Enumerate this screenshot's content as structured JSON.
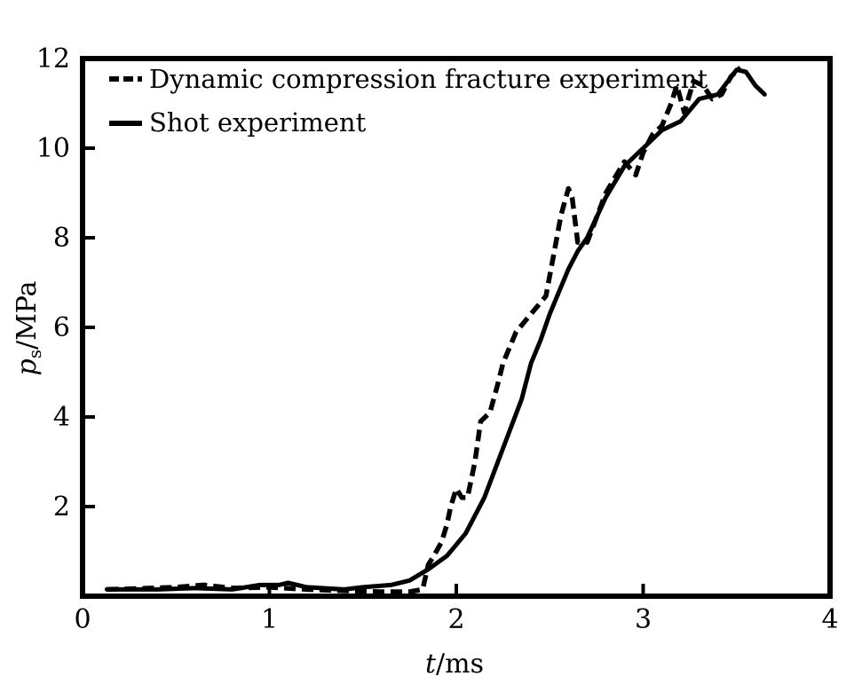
{
  "chart_data": {
    "type": "line",
    "title": "",
    "xlabel_italic": "t",
    "xlabel_rest": "/ms",
    "ylabel_italic": "p",
    "ylabel_sub": "s",
    "ylabel_rest": "/MPa",
    "xlim": [
      0,
      4
    ],
    "ylim": [
      0,
      12
    ],
    "x_ticks": [
      0,
      1,
      2,
      3,
      4
    ],
    "x_tick_labels": [
      "0",
      "1",
      "2",
      "3",
      "4"
    ],
    "y_ticks": [
      2,
      4,
      6,
      8,
      10,
      12
    ],
    "y_tick_labels": [
      "2",
      "4",
      "6",
      "8",
      "10",
      "12"
    ],
    "legend_position": "top-left",
    "grid": false,
    "series": [
      {
        "name": "Dynamic compression fracture experiment",
        "style": "dashed",
        "color": "#000000",
        "points": [
          [
            0.13,
            0.15
          ],
          [
            0.3,
            0.17
          ],
          [
            0.5,
            0.2
          ],
          [
            0.65,
            0.25
          ],
          [
            0.8,
            0.18
          ],
          [
            1.0,
            0.2
          ],
          [
            1.2,
            0.15
          ],
          [
            1.4,
            0.12
          ],
          [
            1.6,
            0.1
          ],
          [
            1.75,
            0.1
          ],
          [
            1.82,
            0.15
          ],
          [
            1.85,
            0.7
          ],
          [
            1.88,
            0.9
          ],
          [
            1.92,
            1.2
          ],
          [
            1.95,
            1.6
          ],
          [
            1.97,
            2.0
          ],
          [
            2.0,
            2.4
          ],
          [
            2.03,
            2.2
          ],
          [
            2.06,
            2.2
          ],
          [
            2.1,
            3.0
          ],
          [
            2.13,
            3.9
          ],
          [
            2.18,
            4.1
          ],
          [
            2.22,
            4.7
          ],
          [
            2.25,
            5.2
          ],
          [
            2.28,
            5.5
          ],
          [
            2.32,
            5.9
          ],
          [
            2.36,
            6.1
          ],
          [
            2.4,
            6.3
          ],
          [
            2.44,
            6.5
          ],
          [
            2.48,
            6.7
          ],
          [
            2.52,
            7.6
          ],
          [
            2.56,
            8.5
          ],
          [
            2.6,
            9.1
          ],
          [
            2.62,
            8.9
          ],
          [
            2.65,
            7.9
          ],
          [
            2.7,
            7.9
          ],
          [
            2.8,
            9.0
          ],
          [
            2.9,
            9.7
          ],
          [
            2.96,
            9.4
          ],
          [
            3.0,
            9.9
          ],
          [
            3.05,
            10.3
          ],
          [
            3.1,
            10.5
          ],
          [
            3.15,
            11.0
          ],
          [
            3.18,
            11.4
          ],
          [
            3.22,
            10.8
          ],
          [
            3.27,
            11.5
          ],
          [
            3.32,
            11.4
          ],
          [
            3.37,
            11.1
          ],
          [
            3.42,
            11.2
          ],
          [
            3.47,
            11.6
          ],
          [
            3.52,
            11.8
          ]
        ]
      },
      {
        "name": "Shot experiment",
        "style": "solid",
        "color": "#000000",
        "points": [
          [
            0.13,
            0.15
          ],
          [
            0.4,
            0.15
          ],
          [
            0.6,
            0.18
          ],
          [
            0.8,
            0.15
          ],
          [
            0.95,
            0.25
          ],
          [
            1.05,
            0.25
          ],
          [
            1.1,
            0.3
          ],
          [
            1.2,
            0.2
          ],
          [
            1.4,
            0.15
          ],
          [
            1.5,
            0.2
          ],
          [
            1.65,
            0.25
          ],
          [
            1.75,
            0.35
          ],
          [
            1.85,
            0.6
          ],
          [
            1.95,
            0.9
          ],
          [
            2.05,
            1.4
          ],
          [
            2.15,
            2.2
          ],
          [
            2.25,
            3.3
          ],
          [
            2.35,
            4.4
          ],
          [
            2.4,
            5.2
          ],
          [
            2.45,
            5.7
          ],
          [
            2.5,
            6.3
          ],
          [
            2.55,
            6.8
          ],
          [
            2.6,
            7.3
          ],
          [
            2.65,
            7.7
          ],
          [
            2.7,
            8.0
          ],
          [
            2.8,
            8.9
          ],
          [
            2.9,
            9.6
          ],
          [
            3.0,
            10.0
          ],
          [
            3.1,
            10.4
          ],
          [
            3.2,
            10.6
          ],
          [
            3.3,
            11.1
          ],
          [
            3.4,
            11.2
          ],
          [
            3.5,
            11.75
          ],
          [
            3.55,
            11.7
          ],
          [
            3.6,
            11.4
          ],
          [
            3.65,
            11.2
          ]
        ]
      }
    ]
  }
}
